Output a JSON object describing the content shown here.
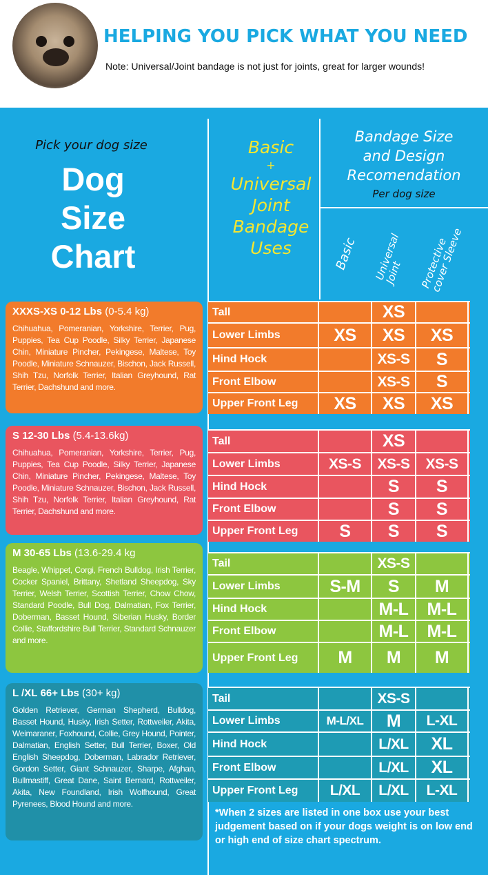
{
  "header": {
    "title": "HELPING YOU PICK WHAT YOU NEED",
    "note": "Note: Universal/Joint bandage is not just for joints, great for larger wounds!"
  },
  "left_header": {
    "pick": "Pick your dog size",
    "title_lines": [
      "Dog",
      "Size",
      "Chart"
    ]
  },
  "uses_header": {
    "lines": [
      "Basic",
      "+",
      "Universal",
      "Joint",
      "Bandage",
      "Uses"
    ]
  },
  "rec_header": {
    "lines": [
      "Bandage Size",
      "and Design",
      "Recomendation"
    ],
    "sub": "Per dog size",
    "columns": [
      "Basic",
      "Universal Joint",
      "Protective cover Sleeve"
    ]
  },
  "colors": {
    "background": "#1aa9e1",
    "orange": "#f27b2b",
    "pink": "#e9555f",
    "green": "#8dc63f",
    "teal": "#1e9bb4",
    "yellow": "#f5e630"
  },
  "groups": [
    {
      "size": "XXXS-XS",
      "weight": "0-12 Lbs",
      "kg": "(0-5.4 kg)",
      "breeds": "Chihuahua, Pomeranian, Yorkshire, Terrier, Pug, Puppies, Tea Cup Poodle, Silky Terrier, Japanese Chin, Miniature Pincher, Pekingese, Maltese, Toy Poodle, Miniature Schnauzer, Bischon, Jack Russell, Shih Tzu, Norfolk Terrier, Italian Greyhound, Rat Terrier, Dachshund and more.",
      "rows": [
        {
          "label": "Tall",
          "basic": "",
          "universal": "XS",
          "protective": ""
        },
        {
          "label": "Lower Limbs",
          "basic": "XS",
          "universal": "XS",
          "protective": "XS"
        },
        {
          "label": "Hind Hock",
          "basic": "",
          "universal": "XS-S",
          "protective": "S"
        },
        {
          "label": "Front Elbow",
          "basic": "",
          "universal": "XS-S",
          "protective": "S"
        },
        {
          "label": "Upper Front Leg",
          "basic": "XS",
          "universal": "XS",
          "protective": "XS"
        }
      ]
    },
    {
      "size": "S",
      "weight": "12-30 Lbs",
      "kg": "(5.4-13.6kg)",
      "breeds": "Chihuahua, Pomeranian, Yorkshire, Terrier, Pug, Puppies, Tea Cup Poodle, Silky Terrier, Japanese Chin, Miniature Pincher, Pekingese, Maltese, Toy Poodle, Miniature Schnauzer, Bischon, Jack Russell, Shih Tzu, Norfolk Terrier, Italian Greyhound, Rat Terrier, Dachshund and more.",
      "rows": [
        {
          "label": "Tall",
          "basic": "",
          "universal": "XS",
          "protective": ""
        },
        {
          "label": "Lower Limbs",
          "basic": "XS-S",
          "universal": "XS-S",
          "protective": "XS-S"
        },
        {
          "label": "Hind Hock",
          "basic": "",
          "universal": "S",
          "protective": "S"
        },
        {
          "label": "Front Elbow",
          "basic": "",
          "universal": "S",
          "protective": "S"
        },
        {
          "label": "Upper Front Leg",
          "basic": "S",
          "universal": "S",
          "protective": "S"
        }
      ]
    },
    {
      "size": "M",
      "weight": "30-65 Lbs",
      "kg": "(13.6-29.4 kg",
      "breeds": "Beagle, Whippet, Corgi, French Bulldog, Irish Terrier, Cocker Spaniel, Brittany, Shetland Sheepdog, Sky Terrier, Welsh Terrier, Scottish Terrier, Chow Chow, Standard Poodle, Bull Dog, Dalmatian, Fox Terrier, Doberman, Basset Hound, Siberian Husky, Border Collie, Staffordshire Bull Terrier, Standard Schnauzer and more.",
      "rows": [
        {
          "label": "Tail",
          "basic": "",
          "universal": "XS-S",
          "protective": ""
        },
        {
          "label": "Lower Limbs",
          "basic": "S-M",
          "universal": "S",
          "protective": "M"
        },
        {
          "label": "Hind Hock",
          "basic": "",
          "universal": "M-L",
          "protective": "M-L"
        },
        {
          "label": "Front Elbow",
          "basic": "",
          "universal": "M-L",
          "protective": "M-L"
        },
        {
          "label": "Upper Front Leg",
          "basic": "M",
          "universal": "M",
          "protective": "M"
        }
      ]
    },
    {
      "size": "L /XL",
      "weight": "66+ Lbs",
      "kg": "(30+ kg)",
      "breeds": "Golden Retriever, German Shepherd, Bulldog, Basset Hound, Husky, Irish Setter, Rottweiler, Akita, Weimaraner, Foxhound, Collie, Grey Hound, Pointer, Dalmatian, English Setter, Bull Terrier, Boxer, Old English Sheepdog, Doberman, Labrador Retriever, Gordon Setter, Giant Schnauzer, Sharpe, Afghan, Bullmastiff, Great Dane, Saint Bernard, Rottweiler, Akita, New Foundland, Irish Wolfhound, Great Pyrenees, Blood Hound and more.",
      "rows": [
        {
          "label": "Tail",
          "basic": "",
          "universal": "XS-S",
          "protective": ""
        },
        {
          "label": "Lower Limbs",
          "basic": "M-L/XL",
          "universal": "M",
          "protective": "L-XL"
        },
        {
          "label": "Hind Hock",
          "basic": "",
          "universal": "L/XL",
          "protective": "XL"
        },
        {
          "label": "Front Elbow",
          "basic": "",
          "universal": "L/XL",
          "protective": "XL"
        },
        {
          "label": "Upper Front Leg",
          "basic": "L/XL",
          "universal": "L/XL",
          "protective": "L-XL"
        }
      ]
    }
  ],
  "footnote": "*When 2 sizes are listed in one box use your best judgement based on if your dogs weight is on low end or high end of size chart spectrum."
}
